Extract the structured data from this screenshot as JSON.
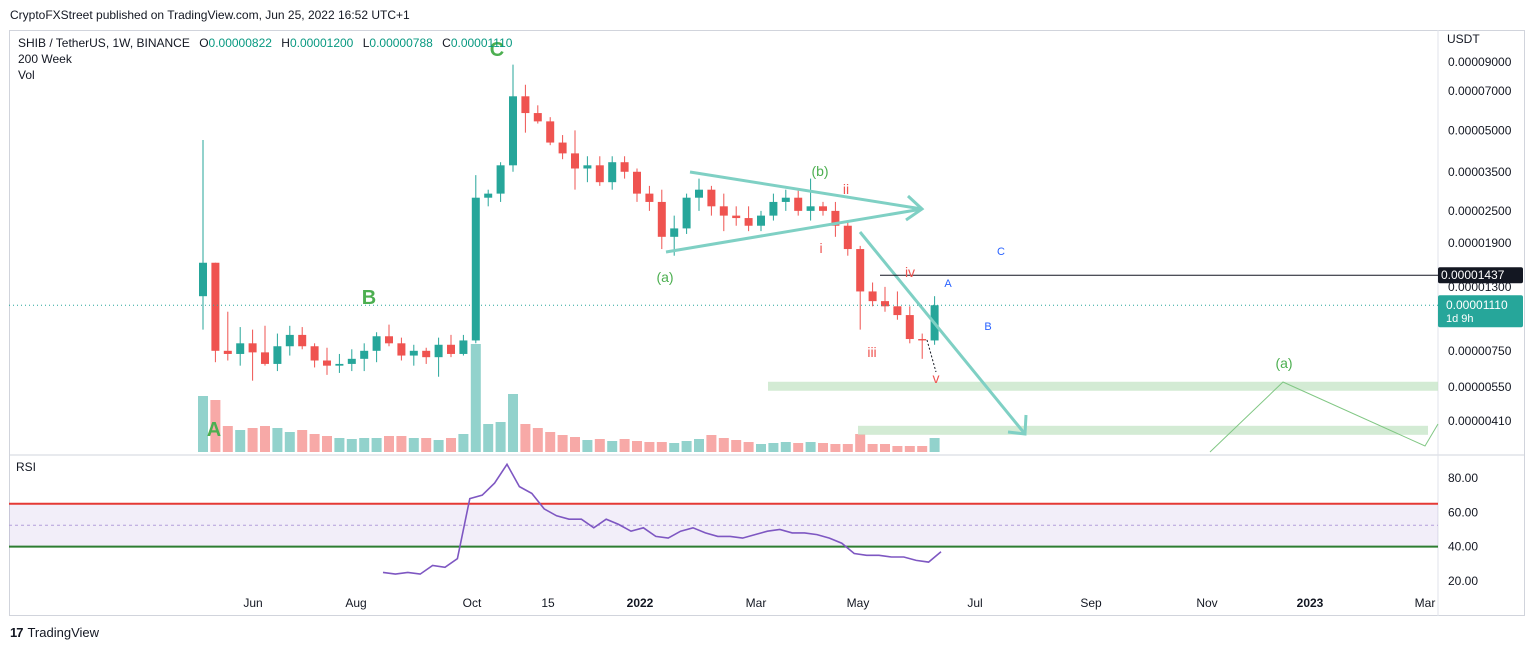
{
  "header": {
    "published": "CryptoFXStreet published on TradingView.com, Jun 25, 2022 16:52 UTC+1"
  },
  "legend": {
    "symbol": "SHIB / TetherUS, 1W, BINANCE",
    "o_label": "O",
    "o_value": "0.00000822",
    "h_label": "H",
    "h_value": "0.00001200",
    "l_label": "L",
    "l_value": "0.00000788",
    "c_label": "C",
    "c_value": "0.00001110",
    "line2": "200 Week",
    "line3": "Vol"
  },
  "colors": {
    "up": "#26a69a",
    "down": "#ef5350",
    "annot": "#4caf50",
    "rsi": "#7e57c2",
    "wave": "#7fd0c4"
  },
  "chart_data": [
    {
      "type": "candlestick",
      "title": "SHIB / TetherUS, 1W, BINANCE",
      "currency": "USDT",
      "y_scale": "log",
      "yticks": [
        "0.00009000",
        "0.00007000",
        "0.00005000",
        "0.00003500",
        "0.00002500",
        "0.00001900",
        "0.00001300",
        "0.00000750",
        "0.00000550",
        "0.00000410"
      ],
      "xticks": [
        "Jun",
        "Aug",
        "Oct",
        "15",
        "2022",
        "Mar",
        "May",
        "Jul",
        "Sep",
        "Nov",
        "2023",
        "Mar"
      ],
      "current_price": "0.00001110",
      "countdown": "1d 9h",
      "level_line": "0.00001437",
      "candles": [
        [
          1.2e-05,
          4.6e-05,
          9e-06,
          1.6e-05
        ],
        [
          1.6e-05,
          1.6e-05,
          6.8e-06,
          7.5e-06
        ],
        [
          7.5e-06,
          1.05e-05,
          6.9e-06,
          7.3e-06
        ],
        [
          7.3e-06,
          9.2e-06,
          6.6e-06,
          8e-06
        ],
        [
          8e-06,
          9e-06,
          5.8e-06,
          7.4e-06
        ],
        [
          7.4e-06,
          9.3e-06,
          6.6e-06,
          6.7e-06
        ],
        [
          6.7e-06,
          8.7e-06,
          6.3e-06,
          7.8e-06
        ],
        [
          7.8e-06,
          9.3e-06,
          7.2e-06,
          8.6e-06
        ],
        [
          8.6e-06,
          9.2e-06,
          7.6e-06,
          7.8e-06
        ],
        [
          7.8e-06,
          8e-06,
          6.5e-06,
          6.9e-06
        ],
        [
          6.9e-06,
          7.7e-06,
          6.1e-06,
          6.6e-06
        ],
        [
          6.6e-06,
          7.3e-06,
          6.2e-06,
          6.7e-06
        ],
        [
          6.7e-06,
          7.6e-06,
          6.3e-06,
          7e-06
        ],
        [
          7e-06,
          8e-06,
          6.3e-06,
          7.5e-06
        ],
        [
          7.5e-06,
          8.8e-06,
          6.8e-06,
          8.5e-06
        ],
        [
          8.5e-06,
          9.4e-06,
          7.8e-06,
          8e-06
        ],
        [
          8e-06,
          8.4e-06,
          6.9e-06,
          7.2e-06
        ],
        [
          7.2e-06,
          7.9e-06,
          6.6e-06,
          7.5e-06
        ],
        [
          7.5e-06,
          7.7e-06,
          6.7e-06,
          7.1e-06
        ],
        [
          7.1e-06,
          8.4e-06,
          6e-06,
          7.9e-06
        ],
        [
          7.9e-06,
          8.6e-06,
          7.1e-06,
          7.3e-06
        ],
        [
          7.3e-06,
          8.6e-06,
          7.2e-06,
          8.2e-06
        ],
        [
          8.2e-06,
          3.4e-05,
          8e-06,
          2.8e-05
        ],
        [
          2.8e-05,
          3e-05,
          2.6e-05,
          2.9e-05
        ],
        [
          2.9e-05,
          3.8e-05,
          2.7e-05,
          3.7e-05
        ],
        [
          3.7e-05,
          8.8e-05,
          3.5e-05,
          6.7e-05
        ],
        [
          6.7e-05,
          7.4e-05,
          4.9e-05,
          5.8e-05
        ],
        [
          5.8e-05,
          6.2e-05,
          5.3e-05,
          5.4e-05
        ],
        [
          5.4e-05,
          5.6e-05,
          4.4e-05,
          4.5e-05
        ],
        [
          4.5e-05,
          4.8e-05,
          3.9e-05,
          4.1e-05
        ],
        [
          4.1e-05,
          5e-05,
          3e-05,
          3.6e-05
        ],
        [
          3.6e-05,
          4e-05,
          3.2e-05,
          3.7e-05
        ],
        [
          3.7e-05,
          4e-05,
          3.1e-05,
          3.2e-05
        ],
        [
          3.2e-05,
          4e-05,
          3e-05,
          3.8e-05
        ],
        [
          3.8e-05,
          4e-05,
          3.3e-05,
          3.5e-05
        ],
        [
          3.5e-05,
          3.6e-05,
          2.7e-05,
          2.9e-05
        ],
        [
          2.9e-05,
          3.1e-05,
          2.5e-05,
          2.7e-05
        ],
        [
          2.7e-05,
          3e-05,
          1.8e-05,
          2e-05
        ],
        [
          2e-05,
          2.4e-05,
          1.7e-05,
          2.15e-05
        ],
        [
          2.15e-05,
          2.9e-05,
          2.05e-05,
          2.8e-05
        ],
        [
          2.8e-05,
          3.3e-05,
          2.5e-05,
          3e-05
        ],
        [
          3e-05,
          3.1e-05,
          2.4e-05,
          2.6e-05
        ],
        [
          2.6e-05,
          2.9e-05,
          2.1e-05,
          2.4e-05
        ],
        [
          2.4e-05,
          2.6e-05,
          2.2e-05,
          2.35e-05
        ],
        [
          2.35e-05,
          2.6e-05,
          2.1e-05,
          2.2e-05
        ],
        [
          2.2e-05,
          2.5e-05,
          2.1e-05,
          2.4e-05
        ],
        [
          2.4e-05,
          2.9e-05,
          2.3e-05,
          2.7e-05
        ],
        [
          2.7e-05,
          3e-05,
          2.5e-05,
          2.8e-05
        ],
        [
          2.8e-05,
          3e-05,
          2.4e-05,
          2.5e-05
        ],
        [
          2.5e-05,
          3.3e-05,
          2.3e-05,
          2.6e-05
        ],
        [
          2.6e-05,
          2.7e-05,
          2.4e-05,
          2.5e-05
        ],
        [
          2.5e-05,
          2.7e-05,
          2e-05,
          2.2e-05
        ],
        [
          2.2e-05,
          2.3e-05,
          1.7e-05,
          1.8e-05
        ],
        [
          1.8e-05,
          1.85e-05,
          9e-06,
          1.25e-05
        ],
        [
          1.25e-05,
          1.35e-05,
          1.1e-05,
          1.15e-05
        ],
        [
          1.15e-05,
          1.3e-05,
          1.05e-05,
          1.1e-05
        ],
        [
          1.1e-05,
          1.25e-05,
          9.8e-06,
          1.02e-05
        ],
        [
          1.02e-05,
          1.1e-05,
          8e-06,
          8.3e-06
        ],
        [
          8.3e-06,
          8.7e-06,
          7e-06,
          8.2e-06
        ],
        [
          8.2e-06,
          1.2e-05,
          7.9e-06,
          1.11e-05
        ]
      ],
      "annotations": [
        {
          "text": "A",
          "color": "#4caf50",
          "size": "large"
        },
        {
          "text": "B",
          "color": "#4caf50",
          "size": "large"
        },
        {
          "text": "C",
          "color": "#4caf50",
          "size": "large"
        },
        {
          "text": "(a)",
          "color": "#4caf50"
        },
        {
          "text": "(b)",
          "color": "#4caf50"
        },
        {
          "text": "i",
          "color": "#ef5350"
        },
        {
          "text": "ii",
          "color": "#ef5350"
        },
        {
          "text": "iii",
          "color": "#ef5350"
        },
        {
          "text": "iv",
          "color": "#ef5350"
        },
        {
          "text": "v",
          "color": "#ef5350"
        },
        {
          "text": "A",
          "color": "#2962ff"
        },
        {
          "text": "B",
          "color": "#2962ff"
        },
        {
          "text": "C",
          "color": "#2962ff"
        },
        {
          "text": "(a)",
          "color": "#4caf50"
        }
      ]
    },
    {
      "type": "line",
      "title": "RSI",
      "yticks": [
        "80.00",
        "60.00",
        "40.00",
        "20.00"
      ],
      "ylim": [
        13,
        92
      ],
      "band": [
        40,
        65
      ],
      "upper_line": 65,
      "lower_line": 40,
      "values": [
        25,
        24,
        25,
        24,
        29,
        28,
        33,
        68,
        70,
        77,
        88,
        75,
        71,
        62,
        58,
        56,
        56,
        51,
        56,
        53,
        49,
        51,
        46,
        45,
        49,
        51,
        48,
        46,
        46,
        45,
        47,
        49,
        50,
        48,
        48,
        47,
        45,
        42,
        36,
        35,
        35,
        34,
        34,
        32,
        31,
        37
      ]
    }
  ],
  "footer": {
    "brand": "TradingView"
  }
}
